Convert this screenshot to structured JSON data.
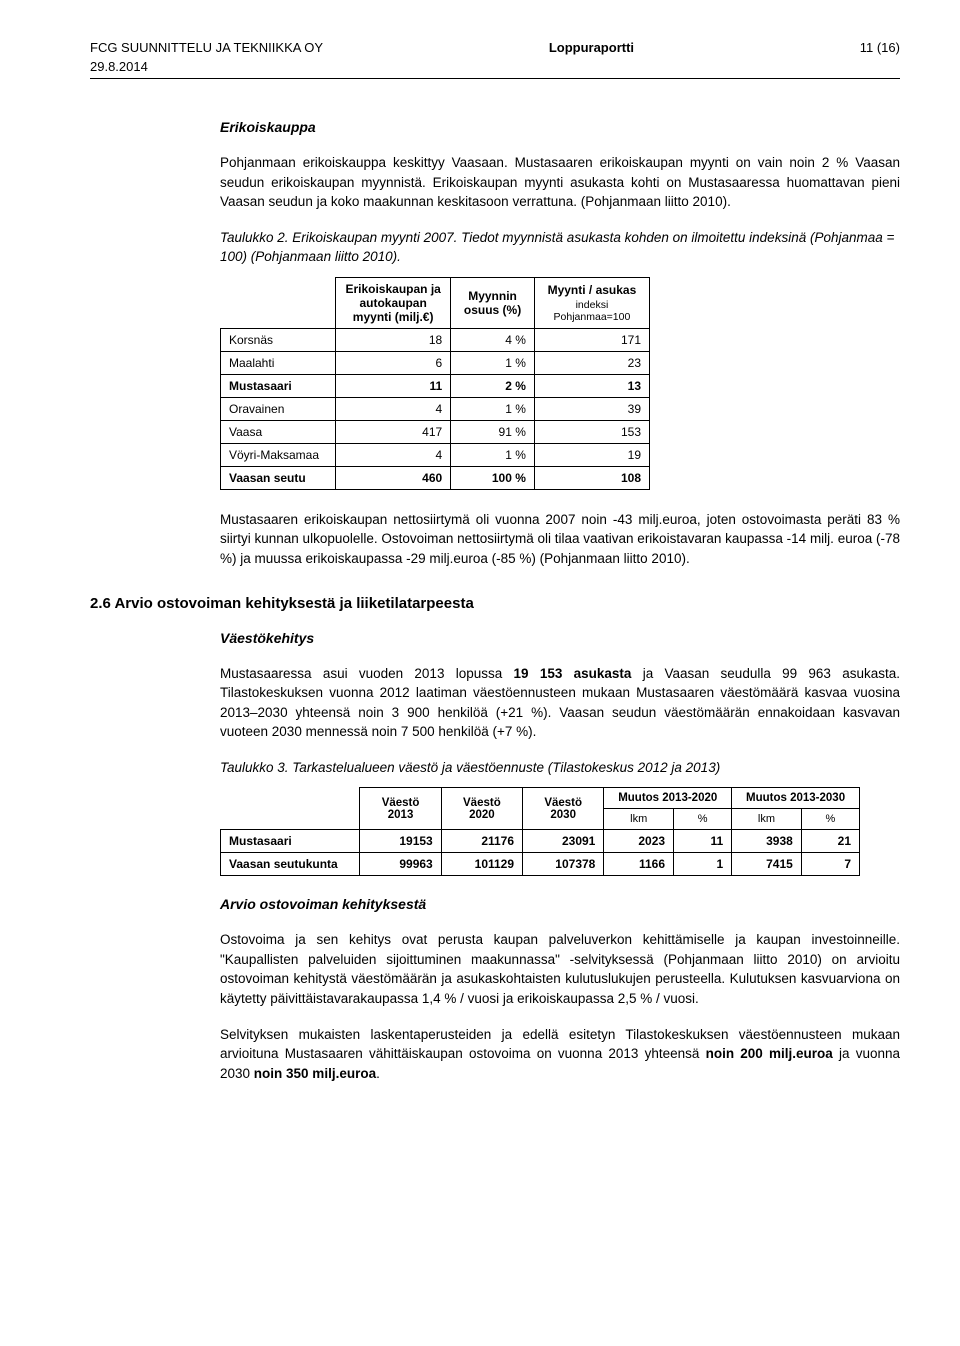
{
  "header": {
    "company": "FCG SUUNNITTELU JA TEKNIIKKA OY",
    "title": "Loppuraportti",
    "pageinfo": "11 (16)",
    "date": "29.8.2014"
  },
  "section1": {
    "heading": "Erikoiskauppa",
    "p1": "Pohjanmaan erikoiskauppa keskittyy Vaasaan. Mustasaaren erikoiskaupan myynti on vain noin 2 % Vaasan seudun erikoiskaupan myynnistä. Erikoiskaupan myynti asukasta kohti on Mustasaaressa huomattavan pieni Vaasan seudun ja koko maakunnan keskitasoon verrattuna. (Pohjanmaan liitto 2010).",
    "caption": "Taulukko 2. Erikoiskaupan myynti 2007. Tiedot myynnistä asukasta kohden on ilmoitettu indeksinä (Pohjanmaa = 100) (Pohjanmaan liitto 2010).",
    "table": {
      "col1": "Erikoiskaupan ja autokaupan myynti (milj.€)",
      "col2": "Myynnin osuus (%)",
      "col3_top": "Myynti / asukas",
      "col3_sub": "indeksi Pohjanmaa=100",
      "rows": [
        {
          "label": "Korsnäs",
          "v1": "18",
          "v2": "4 %",
          "v3": "171",
          "bold": false
        },
        {
          "label": "Maalahti",
          "v1": "6",
          "v2": "1 %",
          "v3": "23",
          "bold": false
        },
        {
          "label": "Mustasaari",
          "v1": "11",
          "v2": "2 %",
          "v3": "13",
          "bold": true
        },
        {
          "label": "Oravainen",
          "v1": "4",
          "v2": "1 %",
          "v3": "39",
          "bold": false
        },
        {
          "label": "Vaasa",
          "v1": "417",
          "v2": "91 %",
          "v3": "153",
          "bold": false
        },
        {
          "label": "Vöyri-Maksamaa",
          "v1": "4",
          "v2": "1 %",
          "v3": "19",
          "bold": false
        },
        {
          "label": "Vaasan seutu",
          "v1": "460",
          "v2": "100 %",
          "v3": "108",
          "bold": true
        }
      ]
    },
    "p2": "Mustasaaren erikoiskaupan nettosiirtymä oli vuonna 2007 noin -43 milj.euroa, joten ostovoimasta peräti 83 % siirtyi kunnan ulkopuolelle. Ostovoiman nettosiirtymä oli tilaa vaativan erikoistavaran kaupassa -14 milj. euroa (-78 %) ja muussa erikoiskaupassa -29 milj.euroa (-85 %) (Pohjanmaan liitto 2010)."
  },
  "section2": {
    "heading": "2.6 Arvio ostovoiman kehityksestä ja liiketilatarpeesta",
    "sub1_heading": "Väestökehitys",
    "sub1_p": "Mustasaaressa asui vuoden 2013 lopussa 19 153 asukasta ja Vaasan seudulla 99 963 asukasta. Tilastokeskuksen vuonna 2012 laatiman väestöennusteen mukaan Mustasaaren väestömäärä kasvaa vuosina 2013–2030 yhteensä noin 3 900 henkilöä (+21 %). Vaasan seudun väestömäärän ennakoidaan kasvavan vuoteen 2030 mennessä noin 7 500 henkilöä (+7 %).",
    "caption": "Taulukko 3. Tarkastelualueen väestö ja väestöennuste (Tilastokeskus 2012 ja 2013)",
    "table": {
      "h1": "Väestö 2013",
      "h2": "Väestö 2020",
      "h3": "Väestö 2030",
      "h4": "Muutos 2013-2020",
      "h5": "Muutos 2013-2030",
      "sub_lkm": "lkm",
      "sub_pct": "%",
      "rows": [
        {
          "label": "Mustasaari",
          "a": "19153",
          "b": "21176",
          "c": "23091",
          "d": "2023",
          "e": "11",
          "f": "3938",
          "g": "21"
        },
        {
          "label": "Vaasan seutukunta",
          "a": "99963",
          "b": "101129",
          "c": "107378",
          "d": "1166",
          "e": "1",
          "f": "7415",
          "g": "7"
        }
      ]
    },
    "sub2_heading": "Arvio ostovoiman kehityksestä",
    "sub2_p1": "Ostovoima ja sen kehitys ovat perusta kaupan palveluverkon kehittämiselle ja kaupan investoinneille. \"Kaupallisten palveluiden sijoittuminen maakunnassa\" -selvityksessä (Pohjanmaan liitto 2010) on arvioitu ostovoiman kehitystä väestömäärän ja asukaskohtaisten kulutuslukujen perusteella. Kulutuksen kasvuarviona on käytetty päivittäistavarakaupassa 1,4 % / vuosi ja erikoiskaupassa 2,5 % / vuosi.",
    "sub2_p2": "Selvityksen mukaisten laskentaperusteiden ja edellä esitetyn Tilastokeskuksen väestöennusteen mukaan arvioituna Mustasaaren vähittäiskaupan ostovoima on vuonna 2013 yhteensä noin 200 milj.euroa ja vuonna 2030 noin 350 milj.euroa."
  }
}
